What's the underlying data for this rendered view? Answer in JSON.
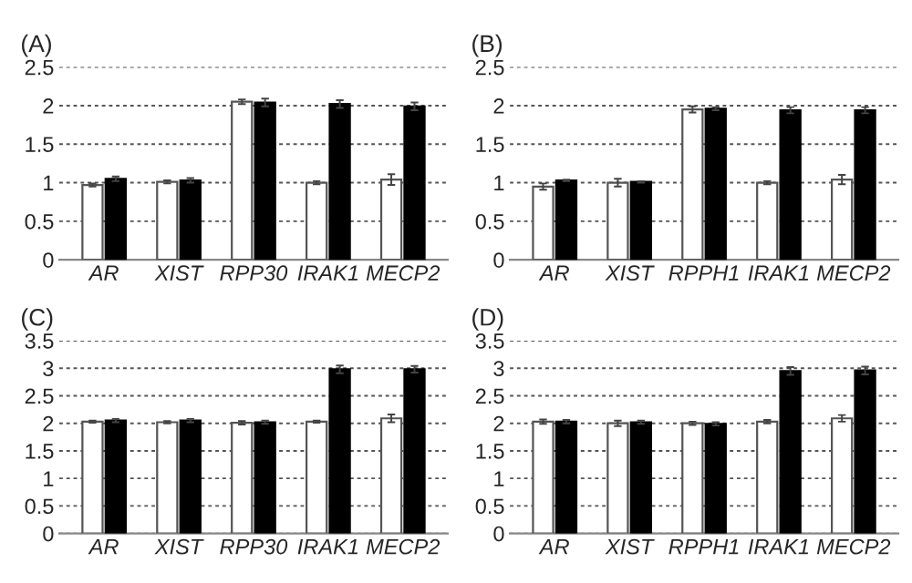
{
  "chart_data": [
    {
      "type": "bar",
      "title": "(A)",
      "categories": [
        "AR",
        "XIST",
        "RPP30",
        "IRAK1",
        "MECP2"
      ],
      "ylim": [
        0,
        2.5
      ],
      "yticks": [
        0,
        0.5,
        1,
        1.5,
        2,
        2.5
      ],
      "grid": "y",
      "series": [
        {
          "color": "#ffffff",
          "values": [
            0.97,
            1.01,
            2.05,
            1.0,
            1.04
          ],
          "errors": [
            0.02,
            0.02,
            0.03,
            0.02,
            0.07
          ]
        },
        {
          "color": "#000000",
          "values": [
            1.05,
            1.03,
            2.04,
            2.02,
            1.99
          ],
          "errors": [
            0.03,
            0.03,
            0.05,
            0.05,
            0.05
          ]
        }
      ]
    },
    {
      "type": "bar",
      "title": "(B)",
      "categories": [
        "AR",
        "XIST",
        "RPPH1",
        "IRAK1",
        "MECP2"
      ],
      "ylim": [
        0,
        2.5
      ],
      "yticks": [
        0,
        0.5,
        1,
        1.5,
        2,
        2.5
      ],
      "grid": "y",
      "series": [
        {
          "color": "#ffffff",
          "values": [
            0.95,
            1.0,
            1.95,
            1.0,
            1.04
          ],
          "errors": [
            0.04,
            0.05,
            0.04,
            0.02,
            0.06
          ]
        },
        {
          "color": "#000000",
          "values": [
            1.03,
            1.01,
            1.96,
            1.94,
            1.94
          ],
          "errors": [
            0.01,
            0.01,
            0.02,
            0.04,
            0.04
          ]
        }
      ]
    },
    {
      "type": "bar",
      "title": "(C)",
      "categories": [
        "AR",
        "XIST",
        "RPP30",
        "IRAK1",
        "MECP2"
      ],
      "ylim": [
        0,
        3.5
      ],
      "yticks": [
        0,
        0.5,
        1,
        1.5,
        2,
        2.5,
        3,
        3.5
      ],
      "grid": "y",
      "series": [
        {
          "color": "#ffffff",
          "values": [
            2.03,
            2.02,
            2.01,
            2.03,
            2.09
          ],
          "errors": [
            0.02,
            0.02,
            0.03,
            0.02,
            0.07
          ]
        },
        {
          "color": "#000000",
          "values": [
            2.05,
            2.05,
            2.02,
            2.98,
            2.98
          ],
          "errors": [
            0.03,
            0.03,
            0.03,
            0.07,
            0.06
          ]
        }
      ]
    },
    {
      "type": "bar",
      "title": "(D)",
      "categories": [
        "AR",
        "XIST",
        "RPPH1",
        "IRAK1",
        "MECP2"
      ],
      "ylim": [
        0,
        3.5
      ],
      "yticks": [
        0,
        0.5,
        1,
        1.5,
        2,
        2.5,
        3,
        3.5
      ],
      "grid": "y",
      "series": [
        {
          "color": "#ffffff",
          "values": [
            2.03,
            2.0,
            2.0,
            2.03,
            2.09
          ],
          "errors": [
            0.04,
            0.05,
            0.03,
            0.03,
            0.06
          ]
        },
        {
          "color": "#000000",
          "values": [
            2.03,
            2.02,
            1.99,
            2.95,
            2.96
          ],
          "errors": [
            0.03,
            0.03,
            0.03,
            0.07,
            0.07
          ]
        }
      ]
    }
  ]
}
